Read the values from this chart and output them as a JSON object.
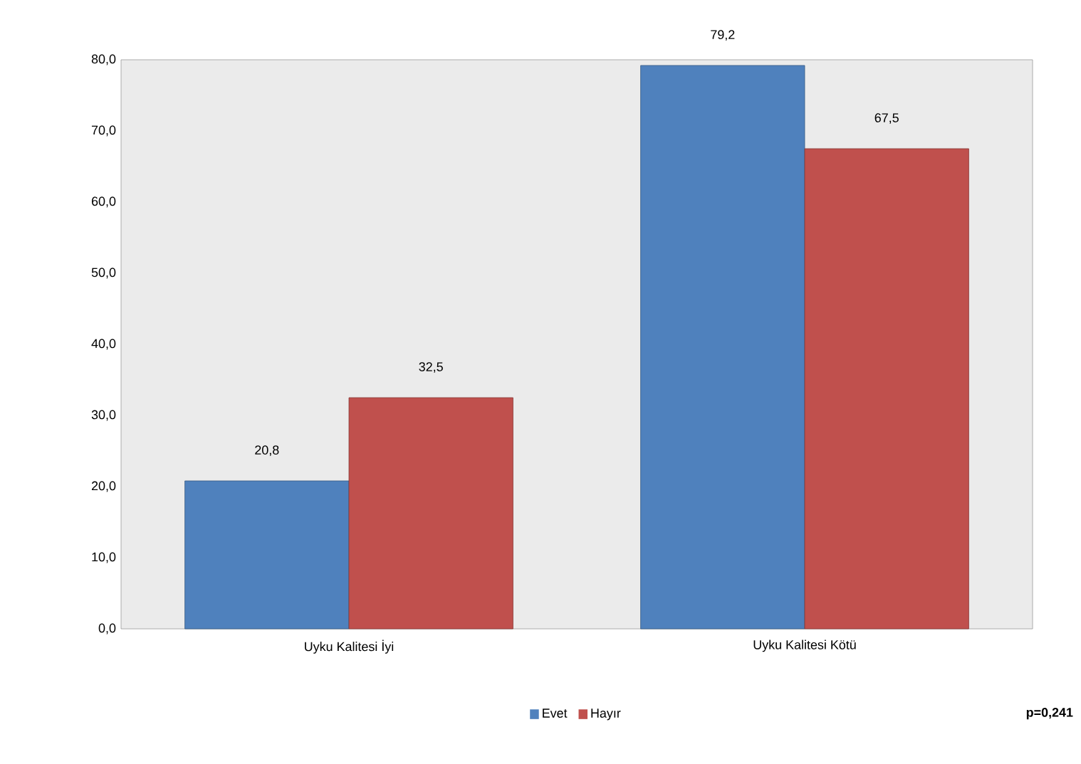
{
  "chart_data": {
    "type": "bar",
    "categories": [
      "Uyku Kalitesi İyi",
      "Uyku Kalitesi Kötü"
    ],
    "series": [
      {
        "name": "Evet",
        "color": "#4f81bd",
        "values": [
          20.8,
          79.2
        ],
        "value_labels": [
          "20,8",
          "79,2"
        ]
      },
      {
        "name": "Hayır",
        "color": "#c0504d",
        "values": [
          32.5,
          67.5
        ],
        "value_labels": [
          "32,5",
          "67,5"
        ]
      }
    ],
    "ylim": [
      0,
      80
    ],
    "yticks": [
      {
        "value": 0,
        "label": "0,0"
      },
      {
        "value": 10,
        "label": "10,0"
      },
      {
        "value": 20,
        "label": "20,0"
      },
      {
        "value": 30,
        "label": "30,0"
      },
      {
        "value": 40,
        "label": "40,0"
      },
      {
        "value": 50,
        "label": "50,0"
      },
      {
        "value": 60,
        "label": "60,0"
      },
      {
        "value": 70,
        "label": "70,0"
      },
      {
        "value": 80,
        "label": "80,0"
      }
    ],
    "legend": "bottom",
    "annotations": [
      "p=0,241"
    ]
  }
}
